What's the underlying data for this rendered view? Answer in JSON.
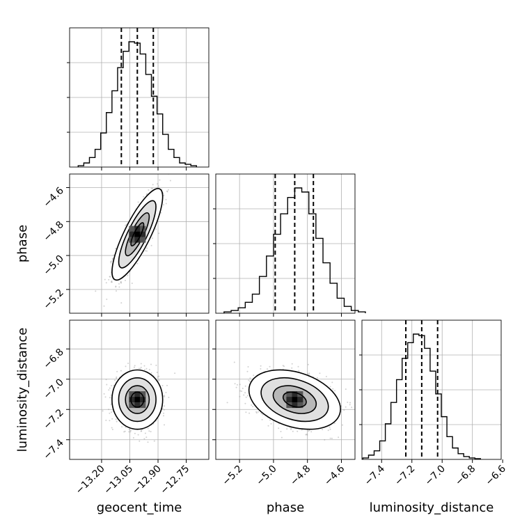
{
  "chart_data": {
    "type": "corner",
    "parameters": [
      "geocent_time",
      "phase",
      "luminosity_distance"
    ],
    "axis_labels": {
      "x": [
        "geocent_time",
        "phase",
        "luminosity_distance"
      ],
      "y": [
        "phase",
        "luminosity_distance"
      ]
    },
    "ranges": {
      "geocent_time": [
        -13.37,
        -12.63
      ],
      "phase": [
        -5.34,
        -4.52
      ],
      "luminosity_distance": [
        -7.53,
        -6.61
      ]
    },
    "ticks": {
      "geocent_time": [
        -13.2,
        -13.05,
        -12.9,
        -12.75
      ],
      "phase": [
        -5.2,
        -5.0,
        -4.8,
        -4.6
      ],
      "luminosity_distance": [
        -7.4,
        -7.2,
        -7.0,
        -6.8,
        -6.6
      ]
    },
    "tick_labels": {
      "geocent_time": [
        "−13.20",
        "−13.05",
        "−12.90",
        "−12.75"
      ],
      "phase": [
        "−5.2",
        "−5.0",
        "−4.8",
        "−4.6"
      ],
      "luminosity_distance": [
        "−7.4",
        "−7.2",
        "−7.0",
        "−6.8",
        "−6.6"
      ]
    },
    "quantiles": {
      "geocent_time": [
        -13.095,
        -13.01,
        -12.925
      ],
      "phase": [
        -4.99,
        -4.875,
        -4.765
      ],
      "luminosity_distance": [
        -7.24,
        -7.135,
        -7.03
      ]
    },
    "histograms": {
      "geocent_time": [
        0.01,
        0.03,
        0.07,
        0.13,
        0.25,
        0.4,
        0.56,
        0.73,
        0.85,
        0.92,
        0.91,
        0.83,
        0.68,
        0.52,
        0.39,
        0.24,
        0.13,
        0.07,
        0.03,
        0.02,
        0.01
      ],
      "phase": [
        0.01,
        0.02,
        0.04,
        0.08,
        0.14,
        0.27,
        0.42,
        0.58,
        0.73,
        0.85,
        0.92,
        0.89,
        0.73,
        0.55,
        0.37,
        0.22,
        0.11,
        0.05,
        0.02,
        0.01
      ],
      "luminosity_distance": [
        0.01,
        0.03,
        0.06,
        0.13,
        0.25,
        0.4,
        0.56,
        0.71,
        0.82,
        0.88,
        0.87,
        0.78,
        0.62,
        0.46,
        0.3,
        0.16,
        0.08,
        0.04,
        0.02,
        0.01,
        0.005
      ]
    },
    "pairs": {
      "phase|geocent_time": {
        "mean": [
          -13.01,
          -4.875
        ],
        "std": [
          0.055,
          0.11
        ],
        "corr": 0.82
      },
      "luminosity_distance|geocent_time": {
        "mean": [
          -13.01,
          -7.135
        ],
        "std": [
          0.055,
          0.08
        ],
        "corr": 0.0
      },
      "luminosity_distance|phase": {
        "mean": [
          -4.875,
          -7.135
        ],
        "std": [
          0.11,
          0.08
        ],
        "corr": -0.32
      }
    },
    "grid": true
  }
}
